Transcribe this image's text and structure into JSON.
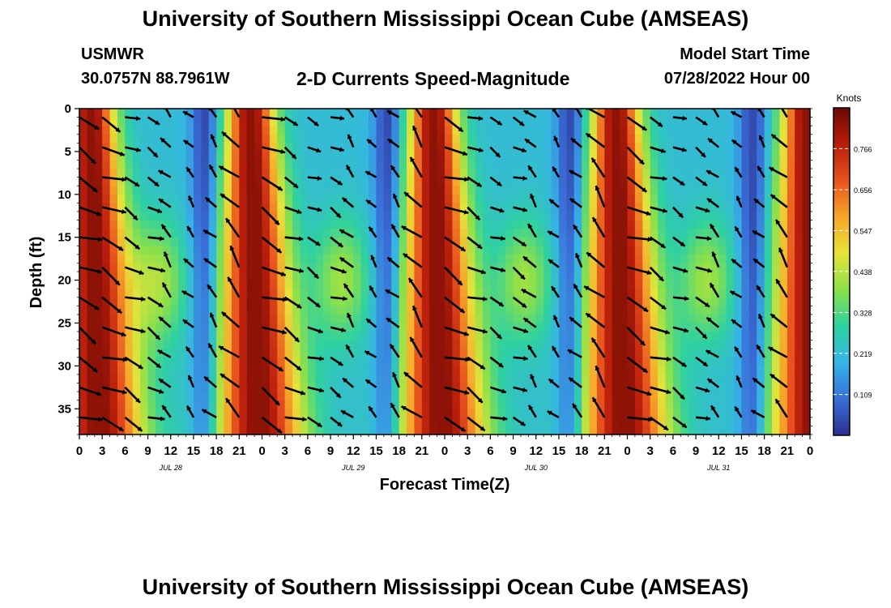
{
  "header": {
    "title": "University of Southern Mississippi Ocean Cube (AMSEAS)",
    "station": "USMWR",
    "location": "30.0757N  88.7961W",
    "subtitle": "2-D Currents Speed-Magnitude",
    "model_start_label": "Model Start Time",
    "model_start_value": "07/28/2022 Hour 00"
  },
  "footer": {
    "title": "University of Southern Mississippi Ocean Cube (AMSEAS)"
  },
  "colors": {
    "colormap": [
      "#2b2f8f",
      "#3a6fd8",
      "#36b4e6",
      "#2fd1a0",
      "#8be04a",
      "#e6e33a",
      "#f6a62a",
      "#e8531e",
      "#b81d0b",
      "#6b0a04"
    ]
  },
  "chart_data": {
    "type": "heatmap",
    "title": "2-D Currents Speed-Magnitude",
    "xlabel": "Forecast Time(Z)",
    "ylabel": "Depth (ft)",
    "x_tick_labels": [
      "0",
      "3",
      "6",
      "9",
      "12",
      "15",
      "18",
      "21",
      "0",
      "3",
      "6",
      "9",
      "12",
      "15",
      "18",
      "21",
      "0",
      "3",
      "6",
      "9",
      "12",
      "15",
      "18",
      "21",
      "0",
      "3",
      "6",
      "9",
      "12",
      "15",
      "18",
      "21",
      "0"
    ],
    "x_range_hours": [
      0,
      96
    ],
    "day_labels": [
      {
        "text": "JUL 28",
        "hour": 12
      },
      {
        "text": "JUL 29",
        "hour": 36
      },
      {
        "text": "JUL 30",
        "hour": 60
      },
      {
        "text": "JUL 31",
        "hour": 84
      }
    ],
    "y_ticks": [
      0,
      5,
      10,
      15,
      20,
      25,
      30,
      35
    ],
    "ylim": [
      0,
      38
    ],
    "colorbar": {
      "label": "Knots",
      "ticks": [
        "0.766",
        "0.656",
        "0.547",
        "0.438",
        "0.328",
        "0.219",
        "0.109"
      ],
      "tick_values": [
        0.766,
        0.656,
        0.547,
        0.438,
        0.328,
        0.219,
        0.109
      ],
      "range": [
        0.0,
        0.875
      ]
    },
    "speed_peaks_hours": [
      1.5,
      22.5,
      46.5,
      70.5,
      95.5
    ],
    "current_arrows": "vectors at every 3 h, depth 0-37 ft"
  }
}
